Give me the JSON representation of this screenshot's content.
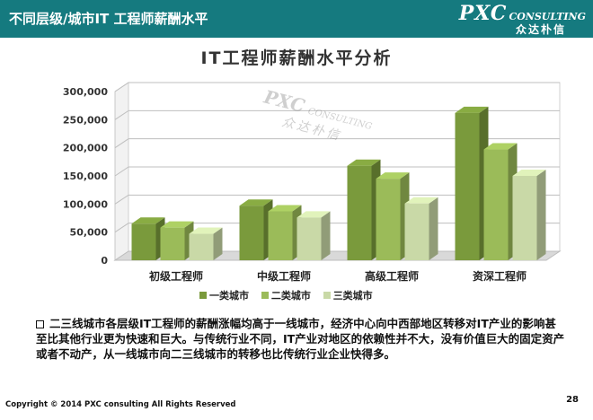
{
  "header": {
    "title": "不同层级/城市IT 工程师薪酬水平",
    "logo_main": "PXC",
    "logo_sub": "CONSULTING",
    "logo_cn": "众达朴信",
    "bg_color": "#157a7f"
  },
  "watermark": {
    "main": "PXC",
    "sub": "CONSULTING",
    "cn": "众达朴信"
  },
  "chart_data": {
    "type": "bar",
    "title": "IT工程师薪酬水平分析",
    "categories": [
      "初级工程师",
      "中级工程师",
      "高级工程师",
      "资深工程师"
    ],
    "series": [
      {
        "name": "一类城市",
        "values": [
          65000,
          97000,
          168000,
          262000
        ],
        "color": "#7a9a3c"
      },
      {
        "name": "二类城市",
        "values": [
          58000,
          87000,
          145000,
          197000
        ],
        "color": "#9bbb59"
      },
      {
        "name": "三类城市",
        "values": [
          47000,
          76000,
          101000,
          150000
        ],
        "color": "#c9d9a7"
      }
    ],
    "yticks": [
      "0",
      "50,000",
      "100,000",
      "150,000",
      "200,000",
      "250,000",
      "300,000"
    ],
    "ylim": [
      0,
      300000
    ],
    "grid": true,
    "legend_position": "bottom"
  },
  "description": "二三线城市各层级IT工程师的薪酬涨幅均高于一线城市，经济中心向中西部地区转移对IT产业的影响甚至比其他行业更为快速和巨大。与传统行业不同，IT产业对地区的依赖性并不大，没有价值巨大的固定资产或者不动产，从一线城市向二三线城市的转移也比传统行业企业快得多。",
  "footer": {
    "copyright": "Copyright © 2014  PXC consulting All Rights Reserved",
    "page_number": "28"
  }
}
